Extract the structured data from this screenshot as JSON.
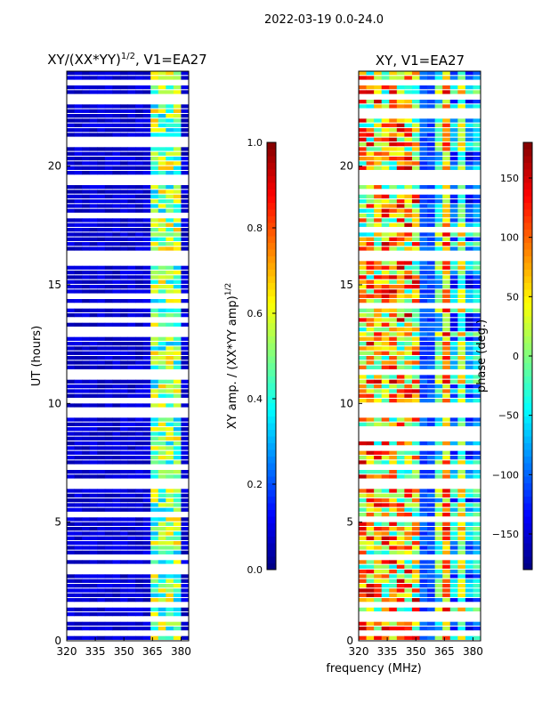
{
  "chart_data": [
    {
      "type": "heatmap",
      "suptitle": "2022-03-19 0.0-24.0",
      "title": "XY/(XX*YY)^1/2, V1=EA27",
      "title_main": "XY/(XX*YY)",
      "title_sup": "1/2",
      "title_tail": ", V1=EA27",
      "ylabel": "UT (hours)",
      "ylim": [
        0,
        24
      ],
      "xlim": [
        320,
        384
      ],
      "xticks": [
        "320",
        "335",
        "350",
        "365",
        "380"
      ],
      "xtick_values": [
        320,
        335,
        350,
        365,
        380
      ],
      "yticks": [
        "0",
        "5",
        "10",
        "15",
        "20"
      ],
      "ytick_values": [
        0,
        5,
        10,
        15,
        20
      ],
      "colormap": "jet",
      "colorbar": {
        "label": "XY amp. / (XX*YY amp)",
        "label_sup": "1/2",
        "range": [
          0,
          1
        ],
        "ticks": [
          "0.0",
          "0.2",
          "0.4",
          "0.6",
          "0.8",
          "1.0"
        ],
        "tick_values": [
          0,
          0.2,
          0.4,
          0.6,
          0.8,
          1.0
        ]
      },
      "description_values": {
        "low_band_level": 0.05,
        "high_band_mhz": [
          362,
          382
        ],
        "high_band_level": 0.45
      }
    },
    {
      "type": "heatmap",
      "title": "XY, V1=EA27",
      "xlabel": "frequency (MHz)",
      "ylim": [
        0,
        24
      ],
      "xlim": [
        320,
        384
      ],
      "xticks": [
        "320",
        "335",
        "350",
        "365",
        "380"
      ],
      "xtick_values": [
        320,
        335,
        350,
        365,
        380
      ],
      "yticks": [
        "0",
        "5",
        "10",
        "15",
        "20"
      ],
      "ytick_values": [
        0,
        5,
        10,
        15,
        20
      ],
      "colormap": "jet",
      "colorbar": {
        "label": "phase (deg.)",
        "range": [
          -180,
          180
        ],
        "ticks": [
          "−150",
          "−100",
          "−50",
          "0",
          "50",
          "100",
          "150"
        ],
        "tick_values": [
          -150,
          -100,
          -50,
          0,
          50,
          100,
          150
        ]
      }
    }
  ],
  "flagged_ut_intervals": [
    [
      0.3,
      0.5
    ],
    [
      0.9,
      1.0
    ],
    [
      1.4,
      1.6
    ],
    [
      3.5,
      3.7
    ],
    [
      6.4,
      6.9
    ],
    [
      7.3,
      7.5
    ],
    [
      9.5,
      9.8
    ],
    [
      11.3,
      11.4
    ],
    [
      14.1,
      14.3
    ],
    [
      16.0,
      16.4
    ],
    [
      19.2,
      19.6
    ],
    [
      22.8,
      23.0
    ],
    [
      23.5,
      23.6
    ]
  ]
}
